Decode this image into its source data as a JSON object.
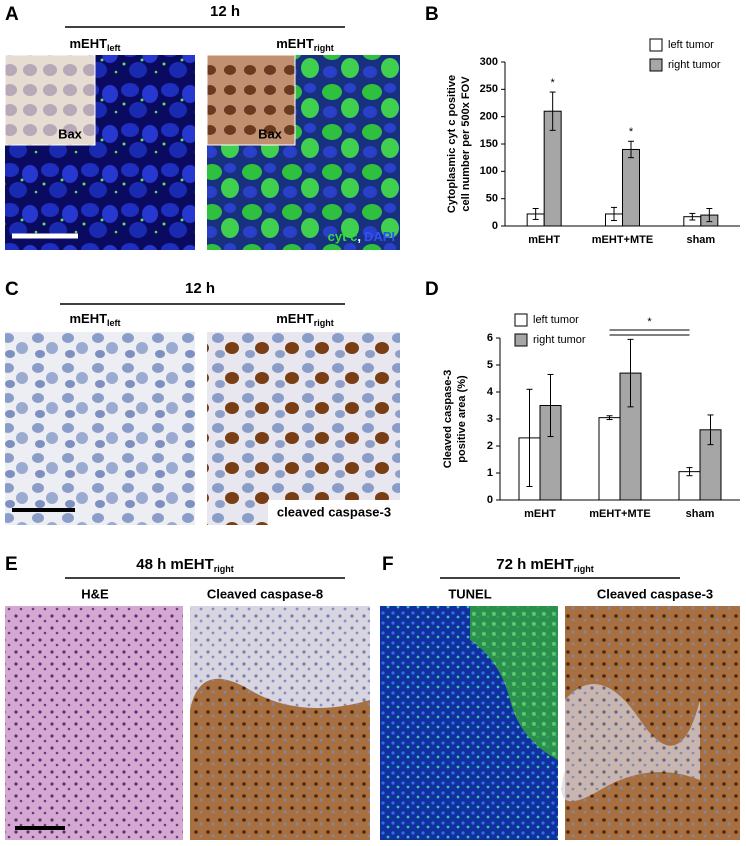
{
  "panels": {
    "A": {
      "letter": "A",
      "time": "12 h",
      "left": {
        "main": "mEHT",
        "sub": "left"
      },
      "right": {
        "main": "mEHT",
        "sub": "right"
      },
      "inset_left": "Bax",
      "inset_right": "Bax",
      "stain": [
        "cyt c",
        ",",
        "DAPI"
      ]
    },
    "C": {
      "letter": "C",
      "time": "12 h",
      "left": {
        "main": "mEHT",
        "sub": "left"
      },
      "right": {
        "main": "mEHT",
        "sub": "right"
      },
      "stain": "cleaved caspase-3"
    },
    "E": {
      "letter": "E",
      "title": {
        "main": "48 h mEHT",
        "sub": "right"
      },
      "left": "H&E",
      "right": "Cleaved caspase-8"
    },
    "F": {
      "letter": "F",
      "title": {
        "main": "72 h mEHT",
        "sub": "right"
      },
      "left": "TUNEL",
      "right": "Cleaved caspase-3"
    }
  },
  "chart_data": [
    {
      "type": "bar",
      "letter": "B",
      "ylabel": [
        "Cytoplasmic cyt c positive",
        "cell number per 500x FOV"
      ],
      "categories": [
        "mEHT",
        "mEHT+MTE",
        "sham"
      ],
      "series": [
        {
          "name": "left tumor",
          "color": "#ffffff",
          "values": [
            22,
            22,
            17
          ],
          "errors": [
            10,
            12,
            6
          ]
        },
        {
          "name": "right tumor",
          "color": "#a6a6a6",
          "values": [
            210,
            140,
            20
          ],
          "errors": [
            35,
            15,
            12
          ],
          "annotations": [
            "*",
            "*",
            null
          ]
        }
      ],
      "ylim": [
        0,
        300
      ],
      "yticks": [
        0,
        50,
        100,
        150,
        200,
        250,
        300
      ],
      "legend": "top-right"
    },
    {
      "type": "bar",
      "letter": "D",
      "ylabel": [
        "Cleaved caspase-3",
        "positive area (%)"
      ],
      "categories": [
        "mEHT",
        "mEHT+MTE",
        "sham"
      ],
      "series": [
        {
          "name": "left tumor",
          "color": "#ffffff",
          "values": [
            2.3,
            3.05,
            1.05
          ],
          "errors": [
            1.8,
            0.07,
            0.15
          ]
        },
        {
          "name": "right tumor",
          "color": "#a6a6a6",
          "values": [
            3.5,
            4.7,
            2.6
          ],
          "errors": [
            1.15,
            1.25,
            0.55
          ]
        }
      ],
      "bracket": "*",
      "ylim": [
        0,
        6
      ],
      "yticks": [
        0,
        1,
        2,
        3,
        4,
        5,
        6
      ],
      "legend": "top-left"
    }
  ]
}
